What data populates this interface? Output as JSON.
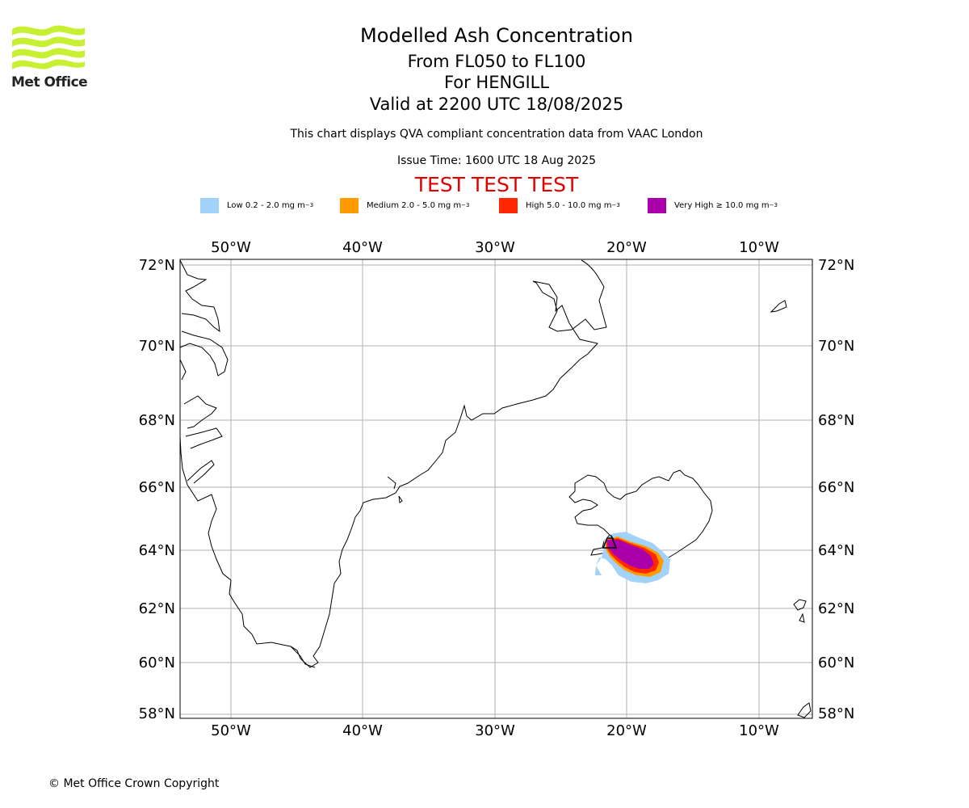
{
  "logo": {
    "text": "Met Office",
    "color": "#c8f032"
  },
  "header": {
    "title": "Modelled Ash Concentration",
    "levels": "From FL050 to FL100",
    "volcano": "For HENGILL",
    "valid": "Valid at 2200 UTC 18/08/2025",
    "subtitle": "This chart displays QVA compliant concentration data from VAAC London",
    "issue_time": "Issue Time: 1600 UTC 18 Aug 2025",
    "test_banner": "TEST TEST TEST"
  },
  "legend": [
    {
      "label": "Low 0.2 - 2.0 mg m",
      "color": "#a0d2fa"
    },
    {
      "label": "Medium 2.0 - 5.0 mg m",
      "color": "#ff9b00"
    },
    {
      "label": "High 5.0 - 10.0 mg m",
      "color": "#ff2800"
    },
    {
      "label": "Very High ≥ 10.0 mg m",
      "color": "#aa00aa"
    }
  ],
  "legend_unit_exponent": "−3",
  "map": {
    "lon_labels": [
      "50°W",
      "40°W",
      "30°W",
      "20°W",
      "10°W"
    ],
    "lat_labels": [
      "72°N",
      "70°N",
      "68°N",
      "66°N",
      "64°N",
      "62°N",
      "60°N",
      "58°N"
    ],
    "lon_range": [
      -54,
      -6
    ],
    "lat_range": [
      58,
      72
    ],
    "volcano_location": {
      "lat": 64.0,
      "lon": -21.3
    }
  },
  "footer": {
    "copyright": "© Met Office Crown Copyright"
  }
}
